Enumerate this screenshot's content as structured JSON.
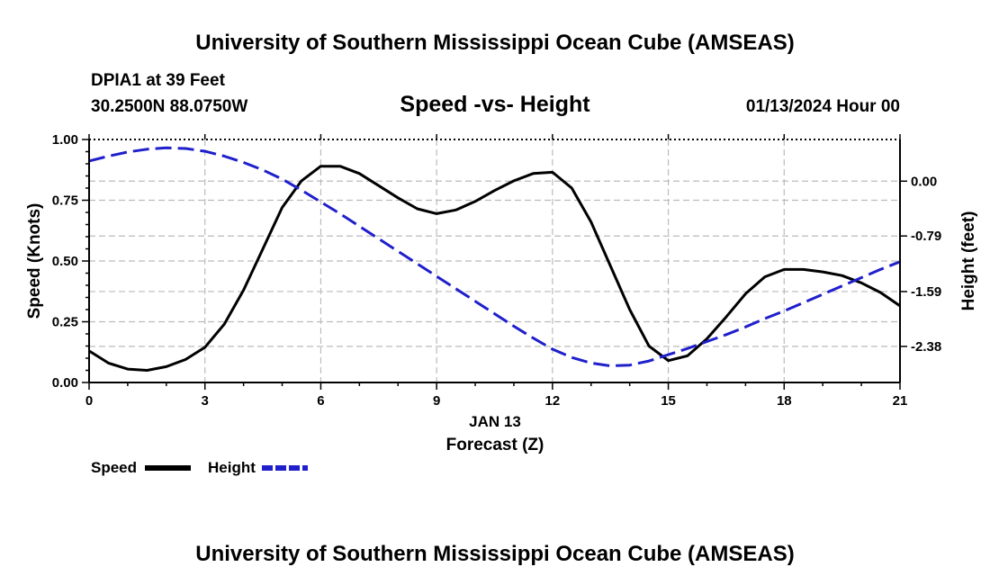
{
  "header": {
    "title": "University of Southern Mississippi Ocean Cube (AMSEAS)",
    "station": "DPIA1 at 39 Feet",
    "coords": "30.2500N  88.0750W",
    "date": "01/13/2024 Hour 00",
    "footer_title": "University of Southern Mississippi Ocean Cube (AMSEAS)"
  },
  "legend": {
    "speed_label": "Speed",
    "height_label": "Height"
  },
  "chart_data": {
    "type": "line",
    "title": "Speed -vs- Height",
    "xlabel": "Forecast (Z)",
    "xlabel_date": "JAN 13",
    "ylabel": "Speed (Knots)",
    "y2label": "Height (feet)",
    "xlim": [
      0,
      21
    ],
    "ylim": [
      0,
      1
    ],
    "y2lim": [
      -2.9,
      0.6
    ],
    "x_ticks": [
      0,
      3,
      6,
      9,
      12,
      15,
      18,
      21
    ],
    "x_tick_labels": [
      "0",
      "3",
      "6",
      "9",
      "12",
      "15",
      "18",
      "21"
    ],
    "y_ticks": [
      0,
      0.25,
      0.5,
      0.75,
      1.0
    ],
    "y_tick_labels": [
      "0.00",
      "0.25",
      "0.50",
      "0.75",
      "1.00"
    ],
    "y2_ticks": [
      0,
      -0.79,
      -1.59,
      -2.38
    ],
    "y2_tick_labels": [
      "0.00",
      "-0.79",
      "-1.59",
      "-2.38"
    ],
    "grid": true,
    "colors": {
      "speed": "#000000",
      "height": "#1f1fcc",
      "grid": "#bbbbbb"
    },
    "series": [
      {
        "name": "Speed",
        "axis": "left",
        "x": [
          0,
          0.5,
          1,
          1.5,
          2,
          2.5,
          3,
          3.5,
          4,
          4.5,
          5,
          5.5,
          6,
          6.5,
          7,
          7.5,
          8,
          8.5,
          9,
          9.5,
          10,
          10.5,
          11,
          11.5,
          12,
          12.5,
          13,
          13.5,
          14,
          14.5,
          15,
          15.5,
          16,
          16.5,
          17,
          17.5,
          18,
          18.5,
          19,
          19.5,
          20,
          20.5,
          21
        ],
        "values": [
          0.13,
          0.08,
          0.055,
          0.05,
          0.065,
          0.095,
          0.145,
          0.24,
          0.38,
          0.55,
          0.72,
          0.83,
          0.89,
          0.89,
          0.86,
          0.81,
          0.76,
          0.715,
          0.695,
          0.71,
          0.745,
          0.79,
          0.83,
          0.86,
          0.865,
          0.8,
          0.66,
          0.48,
          0.3,
          0.15,
          0.09,
          0.11,
          0.18,
          0.27,
          0.365,
          0.435,
          0.465,
          0.465,
          0.455,
          0.44,
          0.41,
          0.37,
          0.315
        ]
      },
      {
        "name": "Height",
        "axis": "right",
        "x": [
          0,
          0.5,
          1,
          1.5,
          2,
          2.5,
          3,
          3.5,
          4,
          4.5,
          5,
          5.5,
          6,
          6.5,
          7,
          7.5,
          8,
          8.5,
          9,
          9.5,
          10,
          10.5,
          11,
          11.5,
          12,
          12.5,
          13,
          13.5,
          14,
          14.5,
          15,
          15.5,
          16,
          16.5,
          17,
          17.5,
          18,
          18.5,
          19,
          19.5,
          20,
          20.5,
          21
        ],
        "values": [
          0.29,
          0.36,
          0.42,
          0.46,
          0.48,
          0.47,
          0.43,
          0.36,
          0.27,
          0.16,
          0.03,
          -0.13,
          -0.3,
          -0.47,
          -0.65,
          -0.83,
          -1.01,
          -1.19,
          -1.37,
          -1.55,
          -1.73,
          -1.91,
          -2.09,
          -2.26,
          -2.42,
          -2.54,
          -2.62,
          -2.66,
          -2.65,
          -2.59,
          -2.5,
          -2.41,
          -2.31,
          -2.21,
          -2.1,
          -1.98,
          -1.87,
          -1.75,
          -1.63,
          -1.51,
          -1.39,
          -1.27,
          -1.16
        ]
      }
    ]
  }
}
